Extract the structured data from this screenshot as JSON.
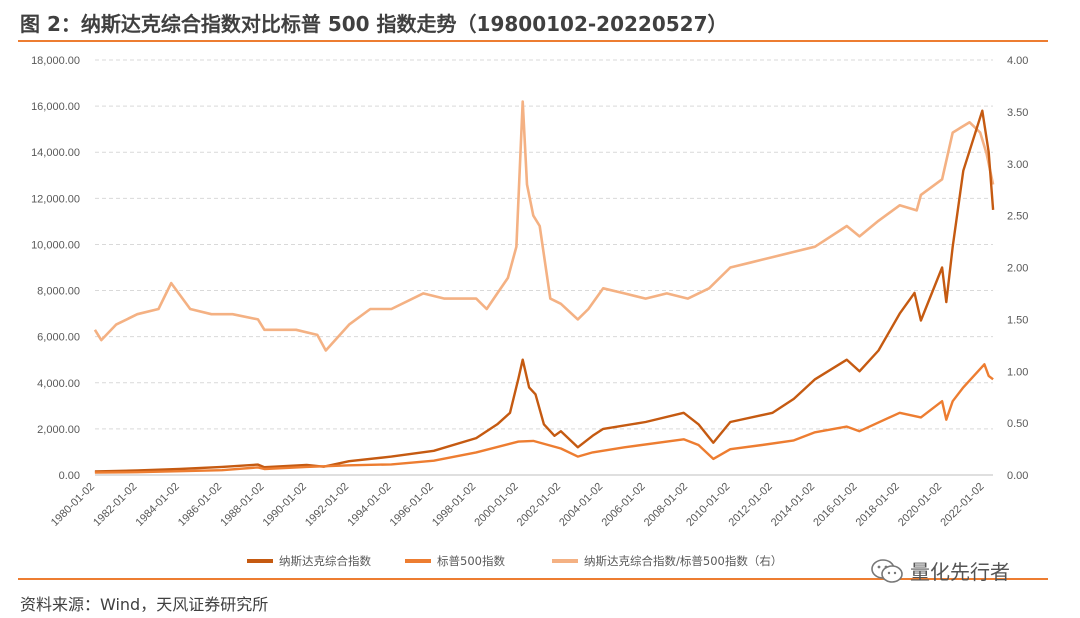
{
  "figure": {
    "title": "图 2：纳斯达克综合指数对比标普 500 指数走势（19800102-20220527）",
    "source": "资料来源：Wind，天风证券研究所",
    "watermark": "量化先行者"
  },
  "colors": {
    "nasdaq": "#C55A11",
    "sp500": "#ED7D31",
    "ratio": "#F4B183",
    "rule": "#ED7D31",
    "grid": "#D9D9D9"
  },
  "chart_data": {
    "type": "line",
    "title": "",
    "x_start": "1980-01-02",
    "x_end": "2022-05-27",
    "x_ticks": [
      "1980-01-02",
      "1982-01-02",
      "1984-01-02",
      "1986-01-02",
      "1988-01-02",
      "1990-01-02",
      "1992-01-02",
      "1994-01-02",
      "1996-01-02",
      "1998-01-02",
      "2000-01-02",
      "2002-01-02",
      "2004-01-02",
      "2006-01-02",
      "2008-01-02",
      "2010-01-02",
      "2012-01-02",
      "2014-01-02",
      "2016-01-02",
      "2018-01-02",
      "2020-01-02",
      "2022-01-02"
    ],
    "y_left": {
      "ylim": [
        0,
        18000
      ],
      "ticks": [
        "0.00",
        "2,000.00",
        "4,000.00",
        "6,000.00",
        "8,000.00",
        "10,000.00",
        "12,000.00",
        "14,000.00",
        "16,000.00",
        "18,000.00"
      ]
    },
    "y_right": {
      "ylim": [
        0,
        4
      ],
      "ticks": [
        "0.00",
        "0.50",
        "1.00",
        "1.50",
        "2.00",
        "2.50",
        "3.00",
        "3.50",
        "4.00"
      ]
    },
    "grid": "horizontal dashed",
    "legend_position": "bottom",
    "series": [
      {
        "name": "纳斯达克综合指数",
        "axis": "left",
        "x": [
          1980.0,
          1982.0,
          1984.0,
          1986.0,
          1987.7,
          1988.0,
          1990.0,
          1990.8,
          1992.0,
          1994.0,
          1996.0,
          1998.0,
          1999.0,
          1999.6,
          2000.0,
          2000.2,
          2000.5,
          2000.8,
          2001.2,
          2001.7,
          2002.0,
          2002.8,
          2003.5,
          2004.0,
          2006.0,
          2007.8,
          2008.5,
          2009.2,
          2010.0,
          2012.0,
          2013.0,
          2014.0,
          2015.5,
          2016.1,
          2017.0,
          2018.0,
          2018.7,
          2019.0,
          2020.0,
          2020.2,
          2020.5,
          2021.0,
          2021.9,
          2022.2,
          2022.41
        ],
        "values": [
          150,
          200,
          260,
          350,
          450,
          340,
          440,
          360,
          600,
          800,
          1050,
          1600,
          2200,
          2700,
          4200,
          5000,
          3800,
          3500,
          2200,
          1700,
          1900,
          1200,
          1700,
          2000,
          2300,
          2700,
          2200,
          1400,
          2300,
          2700,
          3300,
          4150,
          5000,
          4500,
          5400,
          7000,
          7900,
          6700,
          9000,
          7500,
          9900,
          13200,
          15800,
          14000,
          11500
        ]
      },
      {
        "name": "标普500指数",
        "axis": "left",
        "x": [
          1980.0,
          1982.0,
          1984.0,
          1986.0,
          1987.7,
          1988.0,
          1990.0,
          1992.0,
          1994.0,
          1996.0,
          1998.0,
          2000.0,
          2000.7,
          2002.0,
          2002.8,
          2003.5,
          2005.0,
          2007.8,
          2008.5,
          2009.2,
          2010.0,
          2011.5,
          2013.0,
          2014.0,
          2015.5,
          2016.1,
          2018.0,
          2019.0,
          2020.0,
          2020.2,
          2020.5,
          2021.0,
          2022.0,
          2022.2,
          2022.41
        ],
        "values": [
          110,
          120,
          165,
          210,
          330,
          260,
          350,
          420,
          460,
          620,
          980,
          1450,
          1480,
          1150,
          800,
          980,
          1200,
          1550,
          1300,
          700,
          1120,
          1300,
          1500,
          1850,
          2100,
          1900,
          2700,
          2500,
          3200,
          2400,
          3200,
          3800,
          4800,
          4300,
          4150
        ]
      },
      {
        "name": "纳斯达克综合指数/标普500指数（右）",
        "axis": "right",
        "x": [
          1980.0,
          1980.3,
          1981.0,
          1982.0,
          1983.0,
          1983.6,
          1984.5,
          1985.5,
          1986.5,
          1987.7,
          1988.0,
          1989.5,
          1990.5,
          1990.9,
          1992.0,
          1993.0,
          1994.0,
          1995.5,
          1996.5,
          1998.0,
          1998.5,
          1999.0,
          1999.5,
          1999.9,
          2000.2,
          2000.4,
          2000.7,
          2001.0,
          2001.5,
          2002.0,
          2002.8,
          2003.3,
          2004.0,
          2005.0,
          2006.0,
          2007.0,
          2008.0,
          2009.0,
          2010.0,
          2011.0,
          2012.0,
          2013.0,
          2014.0,
          2015.5,
          2016.1,
          2017.0,
          2018.0,
          2018.8,
          2019.0,
          2020.0,
          2020.5,
          2020.9,
          2021.3,
          2021.8,
          2022.1,
          2022.41
        ],
        "values": [
          1.4,
          1.3,
          1.45,
          1.55,
          1.6,
          1.85,
          1.6,
          1.55,
          1.55,
          1.5,
          1.4,
          1.4,
          1.35,
          1.2,
          1.45,
          1.6,
          1.6,
          1.75,
          1.7,
          1.7,
          1.6,
          1.75,
          1.9,
          2.2,
          3.6,
          2.8,
          2.5,
          2.4,
          1.7,
          1.65,
          1.5,
          1.6,
          1.8,
          1.75,
          1.7,
          1.75,
          1.7,
          1.8,
          2.0,
          2.05,
          2.1,
          2.15,
          2.2,
          2.4,
          2.3,
          2.45,
          2.6,
          2.55,
          2.7,
          2.85,
          3.3,
          3.35,
          3.4,
          3.3,
          3.1,
          2.8
        ]
      }
    ]
  }
}
